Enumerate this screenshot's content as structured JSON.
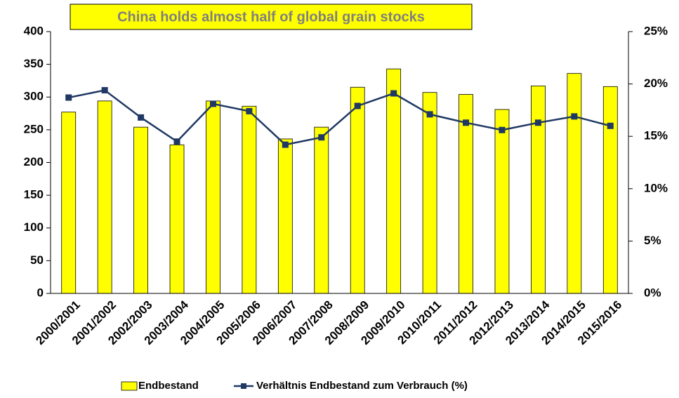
{
  "chart_data": {
    "type": "bar_line",
    "title": "China holds almost half of global grain stocks",
    "categories": [
      "2000/2001",
      "2001/2002",
      "2002/2003",
      "2003/2004",
      "2004/2005",
      "2005/2006",
      "2006/2007",
      "2007/2008",
      "2008/2009",
      "2009/2010",
      "2010/2011",
      "2011/2012",
      "2012/2013",
      "2013/2014",
      "2014/2015",
      "2015/2016"
    ],
    "series": [
      {
        "name": "Endbestand",
        "type": "bar",
        "color": "#ffff00",
        "values": [
          277,
          294,
          254,
          227,
          294,
          286,
          236,
          254,
          315,
          343,
          307,
          304,
          281,
          317,
          336,
          316
        ]
      },
      {
        "name": "Verhältnis Endbestand zum Verbrauch (%)",
        "type": "line",
        "axis": "y2",
        "color": "#1f3864",
        "values": [
          18.7,
          19.4,
          16.8,
          14.5,
          18.1,
          17.4,
          14.2,
          14.9,
          17.9,
          19.1,
          17.1,
          16.3,
          15.6,
          16.3,
          16.9,
          16.0
        ]
      }
    ],
    "ylim": [
      0,
      400
    ],
    "yticks": [
      0,
      50,
      100,
      150,
      200,
      250,
      300,
      350,
      400
    ],
    "y2lim": [
      0,
      25
    ],
    "y2ticks": [
      {
        "value": 0,
        "label": "0%"
      },
      {
        "value": 5,
        "label": "5%"
      },
      {
        "value": 10,
        "label": "10%"
      },
      {
        "value": 15,
        "label": "15%"
      },
      {
        "value": 20,
        "label": "20%"
      },
      {
        "value": 25,
        "label": "25%"
      }
    ],
    "grid": false,
    "legend": "bottom"
  }
}
